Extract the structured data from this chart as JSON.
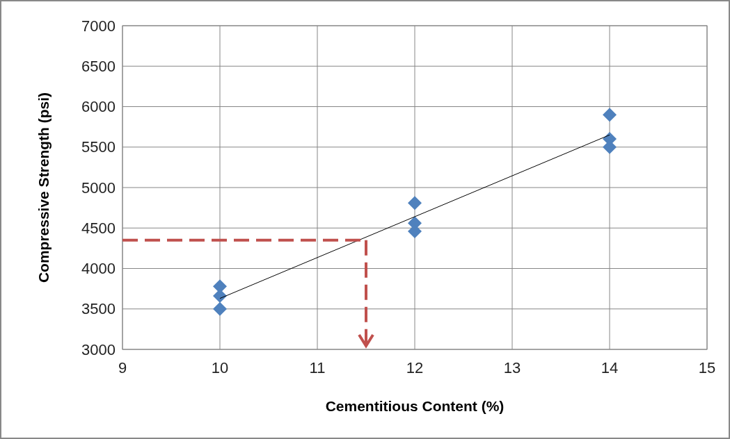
{
  "chart_data": {
    "type": "scatter",
    "xlabel": "Cementitious Content (%)",
    "ylabel": "Compressive Strength (psi)",
    "xlim": [
      9,
      15
    ],
    "xticks": [
      9,
      10,
      11,
      12,
      13,
      14,
      15
    ],
    "ylim": [
      3000,
      7000
    ],
    "yticks": [
      3000,
      3500,
      4000,
      4500,
      5000,
      5500,
      6000,
      6500,
      7000
    ],
    "grid": true,
    "series": [
      {
        "type": "scatter",
        "marker": "diamond",
        "color": "#4f81bd",
        "x": [
          10,
          10,
          10,
          12,
          12,
          12,
          14,
          14,
          14
        ],
        "values": [
          3780,
          3660,
          3500,
          4810,
          4560,
          4460,
          5900,
          5600,
          5500
        ]
      },
      {
        "type": "line",
        "marker": "none",
        "color": "#000000",
        "x": [
          10,
          14
        ],
        "values": [
          3630,
          5650
        ]
      }
    ],
    "ref_lines": [
      {
        "axis": "y",
        "value": 4350,
        "color": "#c0504d",
        "line_style": "dashed"
      },
      {
        "axis": "x",
        "value": 11.5,
        "color": "#c0504d",
        "line_style": "dashed"
      }
    ]
  }
}
